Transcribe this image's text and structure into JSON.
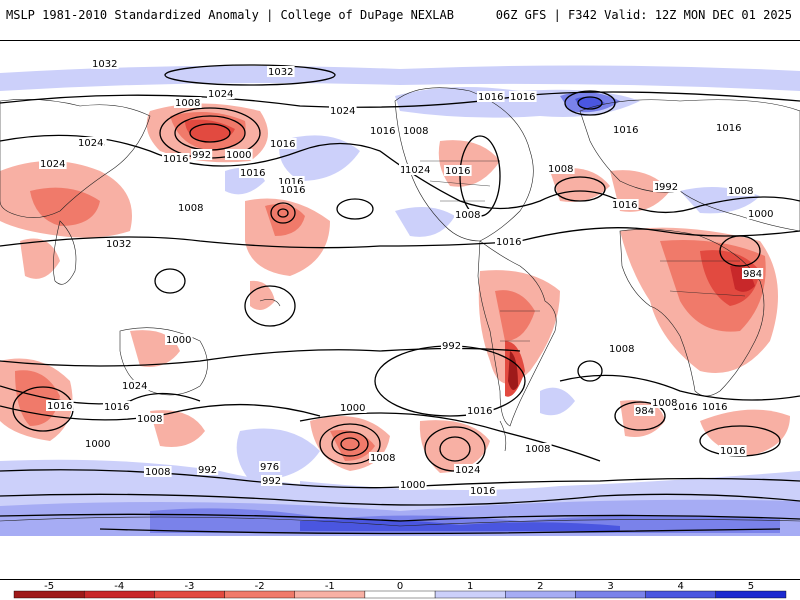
{
  "header": {
    "title": "MSLP 1981-2010 Standardized Anomaly | College of DuPage NEXLAB",
    "run": "06Z GFS | F342 Valid: 12Z MON DEC 01 2025"
  },
  "map": {
    "isobar_labels": [
      "1032",
      "1024",
      "1008",
      "992",
      "1000",
      "1016",
      "1024",
      "1016",
      "1008",
      "1016",
      "1024",
      "1032",
      "1024",
      "1016",
      "1032",
      "1024",
      "1016",
      "1016",
      "1008",
      "1016",
      "1024",
      "1016",
      "1016",
      "1008",
      "1016",
      "1016",
      "1008",
      "1016",
      "1016",
      "1008",
      "1016",
      "992",
      "1008",
      "1000",
      "984",
      "1000",
      "992",
      "1008",
      "1024",
      "1016",
      "1016",
      "1008",
      "1000",
      "1008",
      "992",
      "976",
      "992",
      "1000",
      "1008",
      "1016",
      "1024",
      "1000",
      "1008",
      "1016",
      "984",
      "1008",
      "1016",
      "1016",
      "1016"
    ]
  },
  "colorbar": {
    "ticks": [
      "-5",
      "-4",
      "-3",
      "-2",
      "-1",
      "0",
      "1",
      "2",
      "3",
      "4",
      "5"
    ],
    "colors": [
      "#9e1a1a",
      "#c8282a",
      "#e24a40",
      "#f07a6a",
      "#f8b0a4",
      "#ffffff",
      "#ccd0fa",
      "#a6acf4",
      "#7a82ea",
      "#4a56e0",
      "#1c2ad0"
    ],
    "anomaly_min": -5.5,
    "anomaly_max": 5.5
  }
}
